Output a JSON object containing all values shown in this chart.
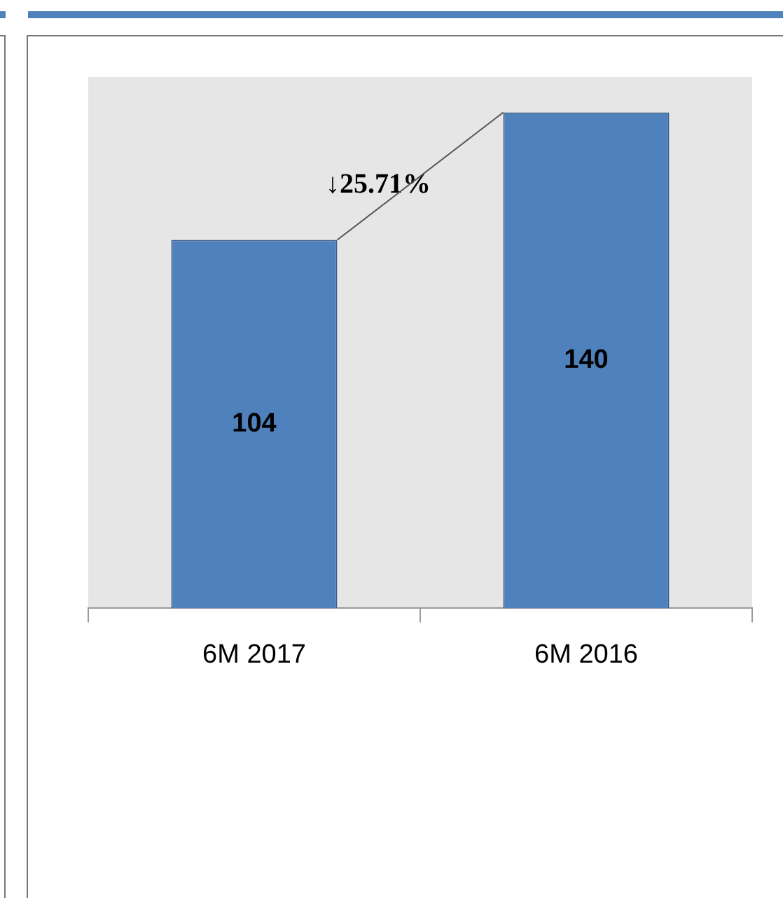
{
  "chart_data": {
    "type": "bar",
    "categories": [
      "6M 2017",
      "6M 2016"
    ],
    "values": [
      104,
      140
    ],
    "color": "#4f81bd",
    "ylim": [
      0,
      150
    ],
    "tick_labels": "x",
    "data_labels": true,
    "grid": false,
    "legend": false,
    "annotations": [
      "↓25.71%"
    ]
  }
}
